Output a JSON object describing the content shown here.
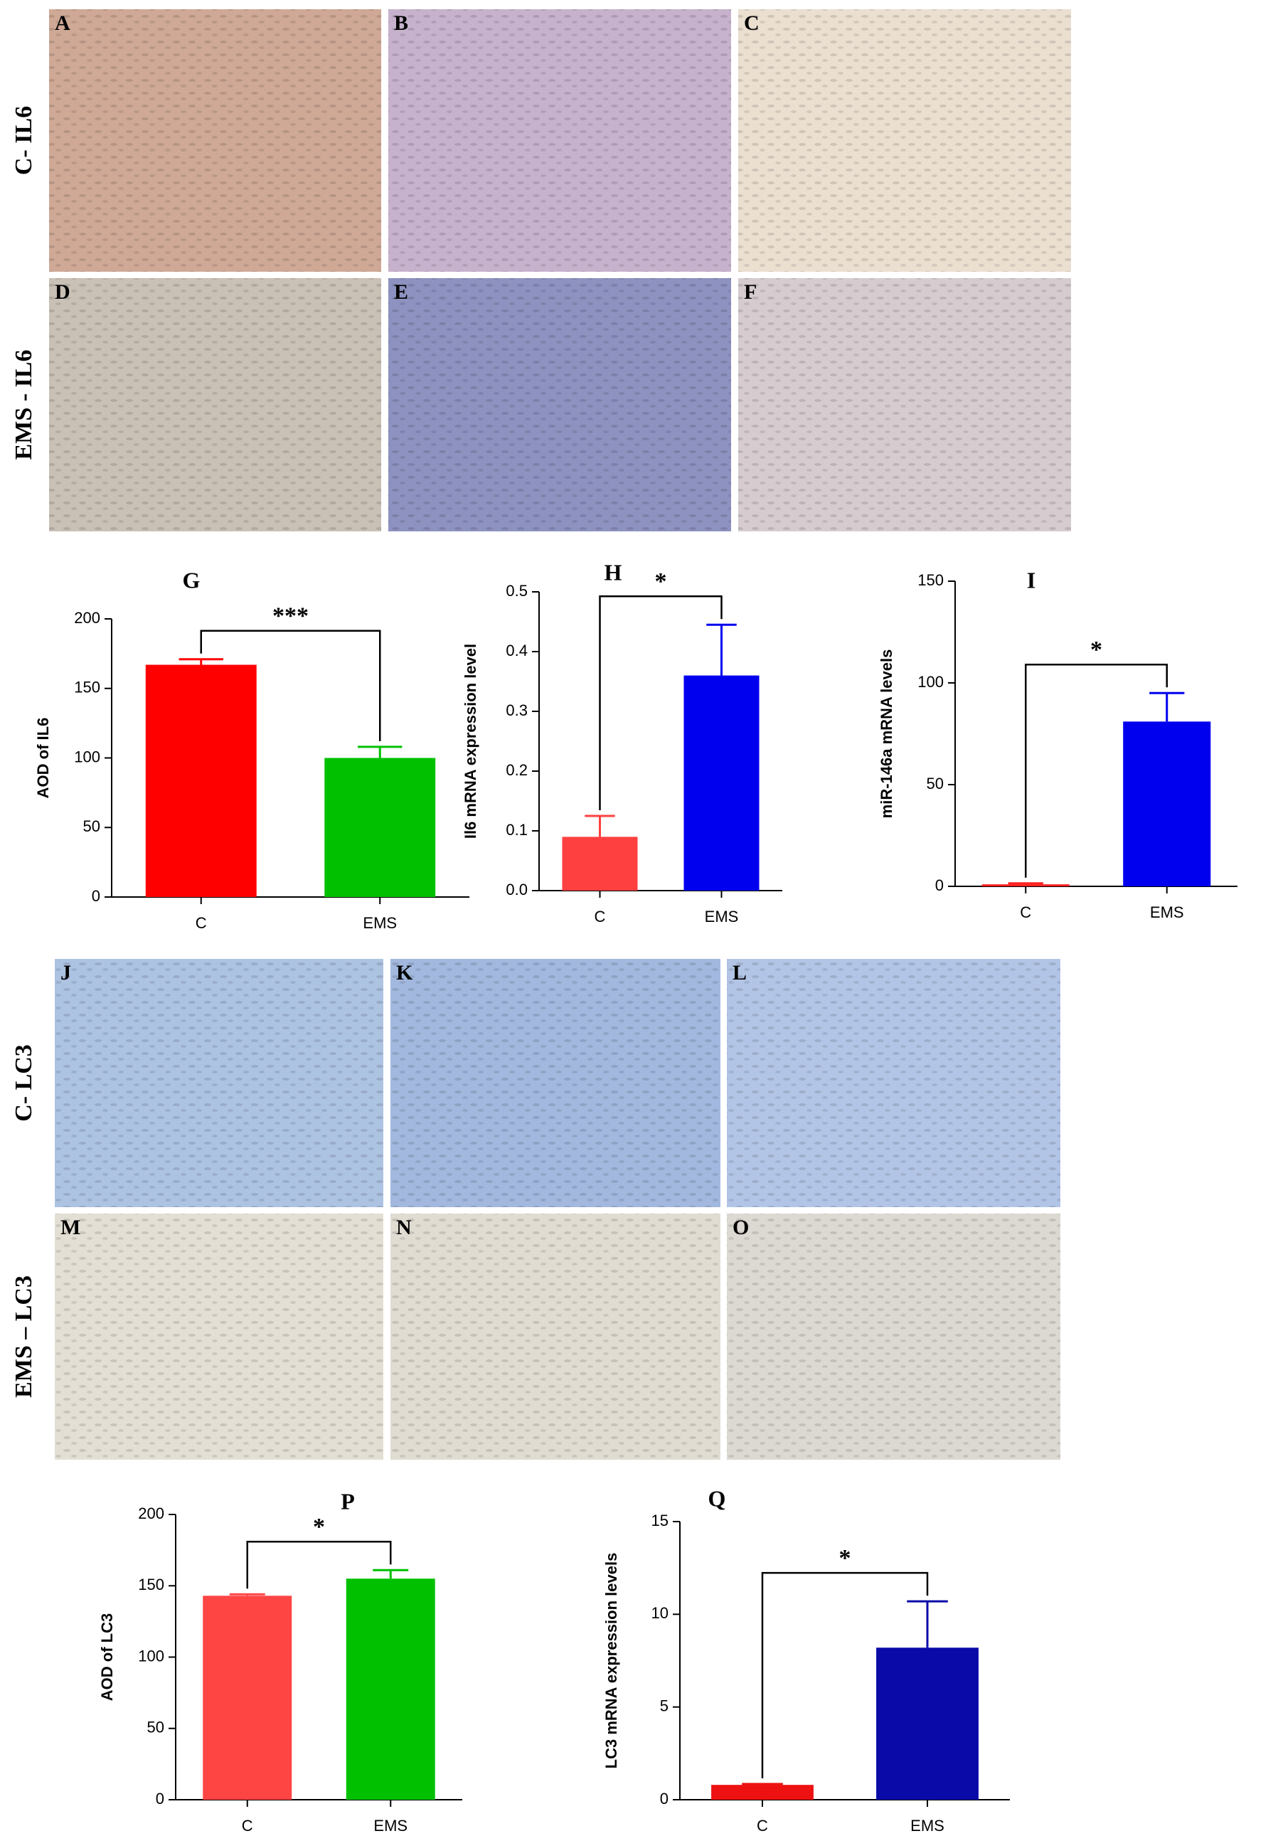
{
  "micrographs": [
    {
      "label": "C- IL6",
      "panels": [
        "A",
        "B",
        "C"
      ]
    },
    {
      "label": "EMS - IL6",
      "panels": [
        "D",
        "E",
        "F"
      ]
    },
    {
      "label": "C- LC3",
      "panels": [
        "J",
        "K",
        "L"
      ]
    },
    {
      "label": "EMS – LC3",
      "panels": [
        "M",
        "N",
        "O"
      ]
    }
  ],
  "chart_data": [
    {
      "type": "bar",
      "label": "G",
      "ylabel": "AOD of IL6",
      "categories": [
        "C",
        "EMS"
      ],
      "values": [
        167,
        100
      ],
      "errors": [
        4,
        8
      ],
      "colors": [
        "#ff0000",
        "#00c000"
      ],
      "ylim": [
        0,
        200
      ],
      "yticks": [
        0,
        50,
        100,
        150,
        200
      ],
      "significance": "***"
    },
    {
      "type": "bar",
      "label": "H",
      "ylabel": "Il6 mRNA expression level",
      "categories": [
        "C",
        "EMS"
      ],
      "values": [
        0.09,
        0.36
      ],
      "errors": [
        0.035,
        0.085
      ],
      "colors": [
        "#ff4040",
        "#0000ee"
      ],
      "ylim": [
        0,
        0.5
      ],
      "yticks": [
        {
          "value": 0,
          "label": "0.0"
        },
        0.1,
        0.2,
        0.3,
        0.4,
        0.5
      ],
      "significance": "*"
    },
    {
      "type": "bar",
      "label": "I",
      "ylabel": "miR-146a mRNA levels",
      "categories": [
        "C",
        "EMS"
      ],
      "values": [
        1,
        81
      ],
      "errors": [
        0.5,
        14
      ],
      "colors": [
        "#ff2020",
        "#0000ee"
      ],
      "ylim": [
        0,
        150
      ],
      "yticks": [
        0,
        50,
        100,
        150
      ],
      "significance": "*"
    },
    {
      "type": "bar",
      "label": "P",
      "ylabel": "AOD of LC3",
      "categories": [
        "C",
        "EMS"
      ],
      "values": [
        143,
        155
      ],
      "errors": [
        1,
        6
      ],
      "colors": [
        "#ff4444",
        "#00c000"
      ],
      "ylim": [
        0,
        200
      ],
      "yticks": [
        0,
        50,
        100,
        150,
        200
      ],
      "significance": "*"
    },
    {
      "type": "bar",
      "label": "Q",
      "ylabel": "LC3 mRNA expression levels",
      "categories": [
        "C",
        "EMS"
      ],
      "values": [
        0.8,
        8.2
      ],
      "errors": [
        0.05,
        2.5
      ],
      "colors": [
        "#ee1111",
        "#0a0aa8"
      ],
      "ylim": [
        0,
        15
      ],
      "yticks": [
        0,
        5,
        10,
        15
      ],
      "significance": "*"
    }
  ]
}
